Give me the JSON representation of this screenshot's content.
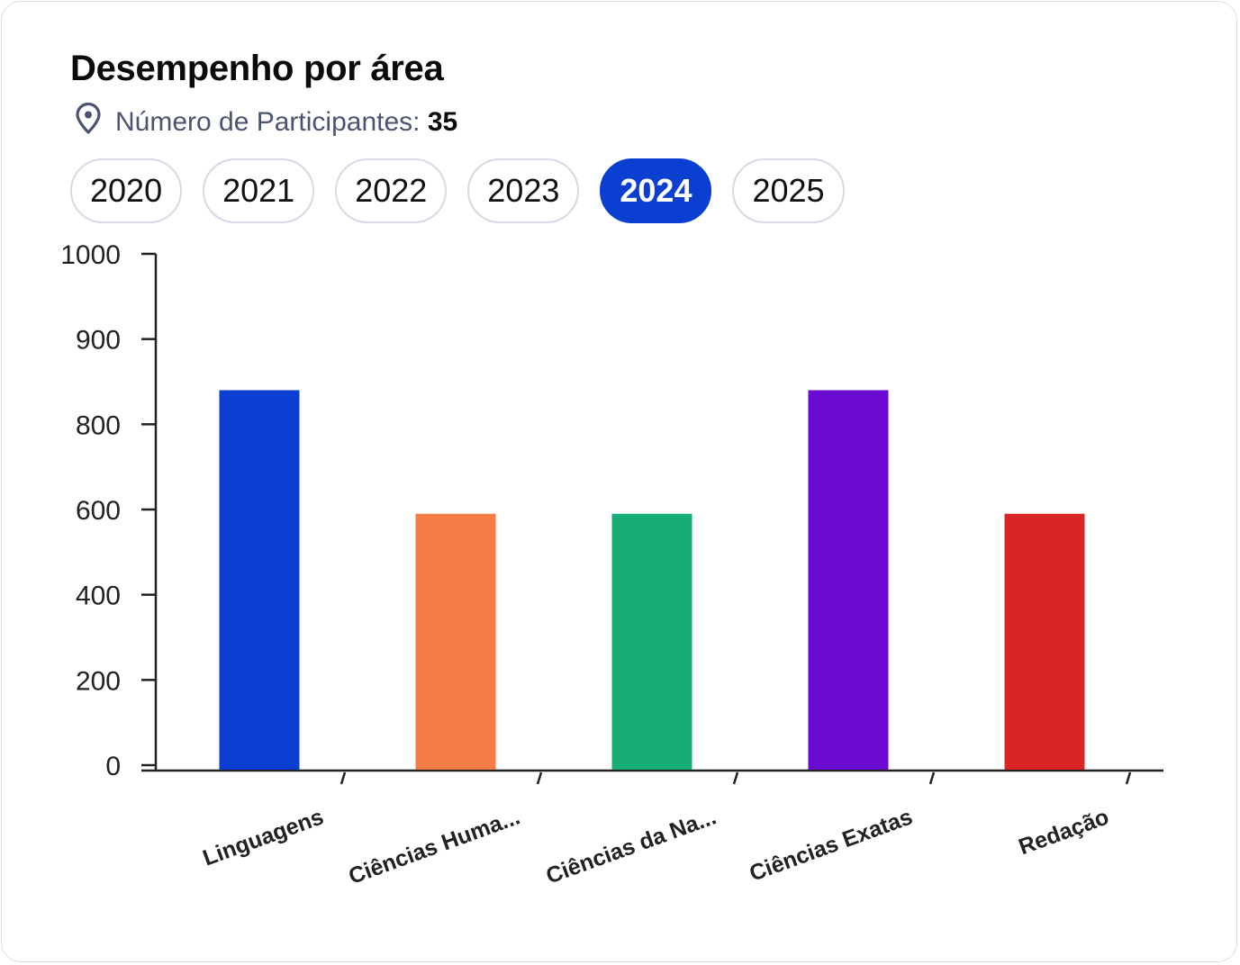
{
  "card": {
    "title": "Desempenho por área",
    "participants_label": "Número de Participantes:",
    "participants_value": "35",
    "location_icon": "map-pin-icon"
  },
  "years": [
    {
      "label": "2020",
      "selected": false
    },
    {
      "label": "2021",
      "selected": false
    },
    {
      "label": "2022",
      "selected": false
    },
    {
      "label": "2023",
      "selected": false
    },
    {
      "label": "2024",
      "selected": true
    },
    {
      "label": "2025",
      "selected": false
    }
  ],
  "colors": {
    "accent": "#0a3fd1"
  },
  "chart_data": {
    "type": "bar",
    "categories": [
      "Linguagens",
      "Ciências Huma...",
      "Ciências da Na...",
      "Ciências Exatas",
      "Redação"
    ],
    "values": [
      840,
      590,
      590,
      840,
      590
    ],
    "colors": [
      "#0a3fd1",
      "#f77b45",
      "#17ae76",
      "#6b0ad1",
      "#da2525"
    ],
    "yticks": [
      0,
      200,
      400,
      600,
      800,
      900,
      1000
    ],
    "ylim": [
      0,
      1000
    ],
    "grid": false
  }
}
